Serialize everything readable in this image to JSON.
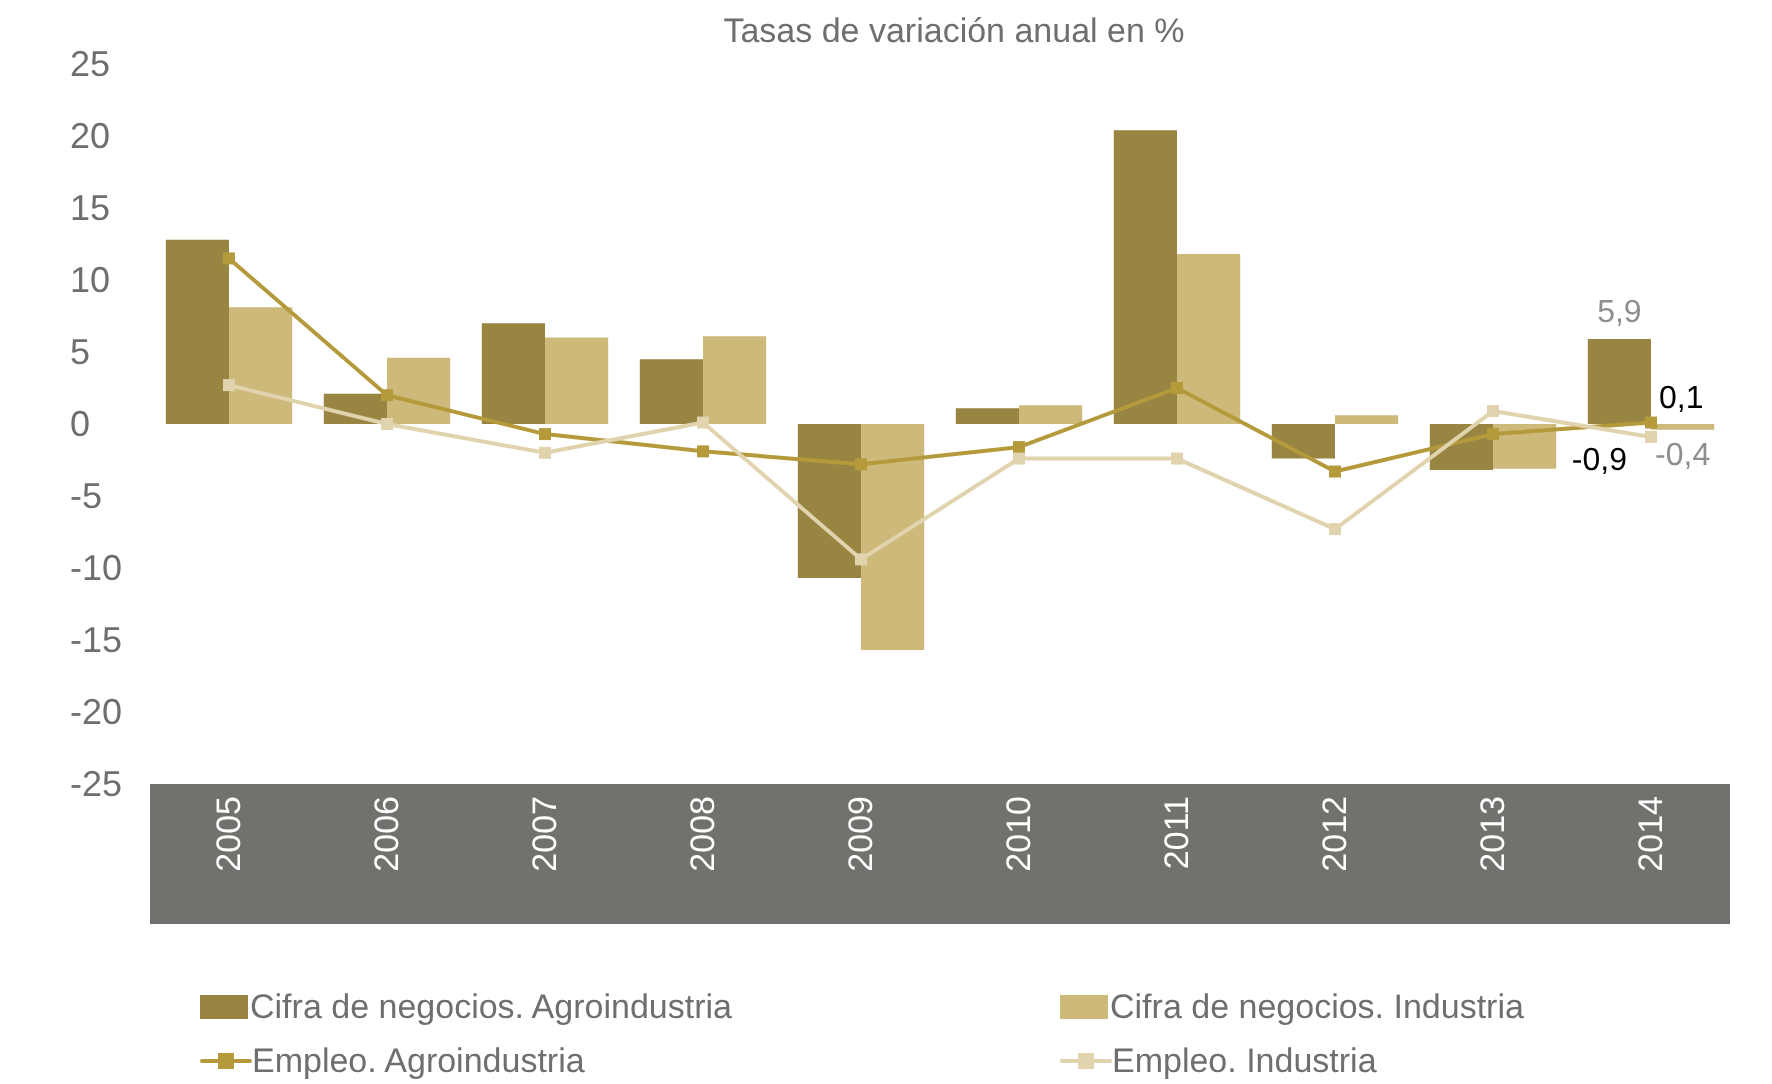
{
  "chart_data": {
    "type": "bar",
    "title": "Tasas de variación anual en %",
    "categories": [
      "2005",
      "2006",
      "2007",
      "2008",
      "2009",
      "2010",
      "2011",
      "2012",
      "2013",
      "2014"
    ],
    "series": [
      {
        "name": "Cifra de negocios. Agroindustria",
        "color": "#978541",
        "values": [
          12.8,
          2.1,
          7.0,
          4.5,
          -10.7,
          1.1,
          20.4,
          -2.4,
          -3.2,
          5.9
        ],
        "value_labels": [
          null,
          null,
          null,
          null,
          null,
          null,
          null,
          null,
          null,
          "5,9"
        ]
      },
      {
        "name": "Cifra de negocios. Industria",
        "color": "#cdb97a",
        "values": [
          8.1,
          4.6,
          6.0,
          6.1,
          -15.7,
          1.3,
          11.8,
          0.6,
          -3.1,
          -0.4
        ],
        "value_labels": [
          null,
          null,
          null,
          null,
          null,
          null,
          null,
          null,
          null,
          "-0,4"
        ]
      },
      {
        "name": "Empleo. Agroindustria",
        "type": "line",
        "color": "#b59a3c",
        "values": [
          11.5,
          2.0,
          -0.7,
          -1.9,
          -2.8,
          -1.6,
          2.5,
          -3.3,
          -0.7,
          0.1
        ],
        "value_labels": [
          null,
          null,
          null,
          null,
          null,
          null,
          null,
          null,
          null,
          "0,1"
        ]
      },
      {
        "name": "Empleo. Industria",
        "type": "line",
        "color": "#e0d3ae",
        "values": [
          2.7,
          0.0,
          -2.0,
          0.1,
          -9.4,
          -2.4,
          -2.4,
          -7.3,
          0.9,
          -0.9
        ],
        "value_labels": [
          null,
          null,
          null,
          null,
          null,
          null,
          null,
          null,
          null,
          "-0,9"
        ]
      }
    ],
    "ylim": [
      -25,
      25
    ],
    "yticks": [
      -25,
      -20,
      -15,
      -10,
      -5,
      0,
      5,
      10,
      15,
      20,
      25
    ],
    "grid": false,
    "legend": "bottom",
    "marker": "square",
    "line_style": "solid"
  }
}
